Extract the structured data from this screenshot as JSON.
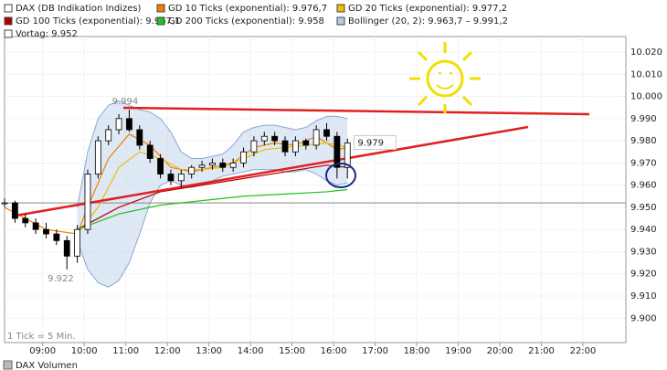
{
  "chart_data": {
    "type": "candlestick",
    "name": "DAX (DB Indikation Indizes)",
    "x": [
      485,
      500,
      515,
      530,
      545,
      560,
      575,
      590,
      605,
      620,
      635,
      650,
      665,
      680,
      695,
      710,
      725,
      740,
      755,
      770,
      785,
      800,
      815,
      830,
      845,
      860,
      875,
      890,
      905,
      920,
      935,
      950,
      965,
      980
    ],
    "open": [
      9.952,
      9.952,
      9.945,
      9.943,
      9.94,
      9.938,
      9.935,
      9.928,
      9.94,
      9.965,
      9.98,
      9.985,
      9.99,
      9.985,
      9.978,
      9.972,
      9.965,
      9.962,
      9.965,
      9.968,
      9.969,
      9.97,
      9.968,
      9.97,
      9.975,
      9.98,
      9.982,
      9.98,
      9.975,
      9.98,
      9.978,
      9.985,
      9.982,
      9.968
    ],
    "high": [
      9.954,
      9.953,
      9.947,
      9.945,
      9.943,
      9.94,
      9.937,
      9.942,
      9.967,
      9.982,
      9.987,
      9.992,
      9.994,
      9.987,
      9.98,
      9.974,
      9.967,
      9.967,
      9.969,
      9.971,
      9.972,
      9.972,
      9.972,
      9.977,
      9.982,
      9.984,
      9.984,
      9.982,
      9.982,
      9.981,
      9.987,
      9.988,
      9.984,
      9.981
    ],
    "low": [
      9.95,
      9.943,
      9.941,
      9.938,
      9.936,
      9.933,
      9.922,
      9.925,
      9.938,
      9.963,
      9.978,
      9.983,
      9.984,
      9.976,
      9.97,
      9.963,
      9.96,
      9.959,
      9.963,
      9.966,
      9.967,
      9.966,
      9.966,
      9.968,
      9.973,
      9.978,
      9.978,
      9.973,
      9.973,
      9.976,
      9.976,
      9.98,
      9.963,
      9.963
    ],
    "close": [
      9.952,
      9.945,
      9.943,
      9.94,
      9.938,
      9.935,
      9.928,
      9.94,
      9.965,
      9.98,
      9.985,
      9.99,
      9.985,
      9.978,
      9.972,
      9.965,
      9.962,
      9.965,
      9.968,
      9.969,
      9.97,
      9.968,
      9.97,
      9.975,
      9.98,
      9.982,
      9.98,
      9.975,
      9.98,
      9.978,
      9.985,
      9.982,
      9.968,
      9.979
    ],
    "overlays": [
      {
        "name": "GD 10 Ticks (exponential): 9.976,7",
        "color": "#f08000",
        "x": [
          485,
          545,
          590,
          605,
          635,
          665,
          695,
          725,
          755,
          785,
          815,
          845,
          875,
          905,
          935,
          965,
          980
        ],
        "values": [
          9.95,
          9.94,
          9.938,
          9.95,
          9.972,
          9.983,
          9.978,
          9.968,
          9.966,
          9.968,
          9.97,
          9.977,
          9.979,
          9.978,
          9.982,
          9.976,
          9.977
        ]
      },
      {
        "name": "GD 20 Ticks (exponential): 9.977,2",
        "color": "#e8c000",
        "x": [
          590,
          620,
          650,
          680,
          710,
          740,
          770,
          800,
          830,
          860,
          890,
          920,
          950,
          980
        ],
        "values": [
          9.938,
          9.95,
          9.968,
          9.975,
          9.972,
          9.967,
          9.967,
          9.968,
          9.972,
          9.976,
          9.977,
          9.978,
          9.979,
          9.977
        ]
      },
      {
        "name": "GD 100 Ticks (exponential): 9.967,1",
        "color": "#b00000",
        "x": [
          590,
          650,
          710,
          770,
          830,
          890,
          950,
          980
        ],
        "values": [
          9.94,
          9.95,
          9.957,
          9.96,
          9.963,
          9.966,
          9.969,
          9.968
        ]
      },
      {
        "name": "GD 200 Ticks (exponential): 9.958",
        "color": "#20c020",
        "x": [
          590,
          650,
          710,
          770,
          830,
          890,
          950,
          980
        ],
        "values": [
          9.94,
          9.947,
          9.951,
          9.953,
          9.955,
          9.956,
          9.957,
          9.958
        ]
      }
    ],
    "bollinger": {
      "name": "Bollinger (20, 2): 9.963,7 – 9.991,2",
      "color": "#b8cce8",
      "x": [
        590,
        605,
        620,
        635,
        650,
        665,
        680,
        695,
        710,
        725,
        740,
        755,
        770,
        785,
        800,
        815,
        830,
        845,
        860,
        875,
        890,
        905,
        920,
        935,
        950,
        965,
        980
      ],
      "upper": [
        9.95,
        9.975,
        9.99,
        9.996,
        9.998,
        9.996,
        9.994,
        9.993,
        9.99,
        9.984,
        9.975,
        9.972,
        9.972,
        9.973,
        9.974,
        9.978,
        9.984,
        9.986,
        9.987,
        9.987,
        9.986,
        9.985,
        9.986,
        9.989,
        9.991,
        9.991,
        9.99
      ],
      "lower": [
        9.935,
        9.922,
        9.916,
        9.914,
        9.917,
        9.925,
        9.938,
        9.952,
        9.96,
        9.962,
        9.96,
        9.959,
        9.96,
        9.962,
        9.964,
        9.965,
        9.966,
        9.967,
        9.967,
        9.967,
        9.966,
        9.966,
        9.967,
        9.965,
        9.962,
        9.96,
        9.961
      ]
    },
    "reference": {
      "value": 9.952,
      "label": "Vortag: 9.952"
    },
    "annotations": [
      {
        "x": 659,
        "value": 9.994,
        "label": "9.994"
      },
      {
        "x": 566,
        "value": 9.922,
        "label": "9.922"
      },
      {
        "x": 992,
        "value": 9.979,
        "label": "9.979"
      }
    ],
    "xlim": [
      485,
      1382
    ],
    "ylim": [
      9.889,
      10.027
    ],
    "xticks": [
      {
        "value": 540,
        "label": "09:00"
      },
      {
        "value": 600,
        "label": "10:00"
      },
      {
        "value": 660,
        "label": "11:00"
      },
      {
        "value": 720,
        "label": "12:00"
      },
      {
        "value": 780,
        "label": "13:00"
      },
      {
        "value": 840,
        "label": "14:00"
      },
      {
        "value": 900,
        "label": "15:00"
      },
      {
        "value": 960,
        "label": "16:00"
      },
      {
        "value": 1020,
        "label": "17:00"
      },
      {
        "value": 1080,
        "label": "18:00"
      },
      {
        "value": 1140,
        "label": "19:00"
      },
      {
        "value": 1200,
        "label": "20:00"
      },
      {
        "value": 1260,
        "label": "21:00"
      },
      {
        "value": 1320,
        "label": "22:00"
      }
    ],
    "yticks": [
      {
        "value": 9.9,
        "label": "9.900"
      },
      {
        "value": 9.91,
        "label": "9.910"
      },
      {
        "value": 9.92,
        "label": "9.920"
      },
      {
        "value": 9.93,
        "label": "9.930"
      },
      {
        "value": 9.94,
        "label": "9.940"
      },
      {
        "value": 9.95,
        "label": "9.950"
      },
      {
        "value": 9.96,
        "label": "9.960"
      },
      {
        "value": 9.97,
        "label": "9.970"
      },
      {
        "value": 9.98,
        "label": "9.980"
      },
      {
        "value": 9.99,
        "label": "9.990"
      },
      {
        "value": 10.0,
        "label": "10.000"
      },
      {
        "value": 10.01,
        "label": "10.010"
      },
      {
        "value": 10.02,
        "label": "10.020"
      }
    ],
    "grid": true,
    "tick_note": "1 Tick = 5 Min.",
    "footer": "DAX Volumen"
  }
}
